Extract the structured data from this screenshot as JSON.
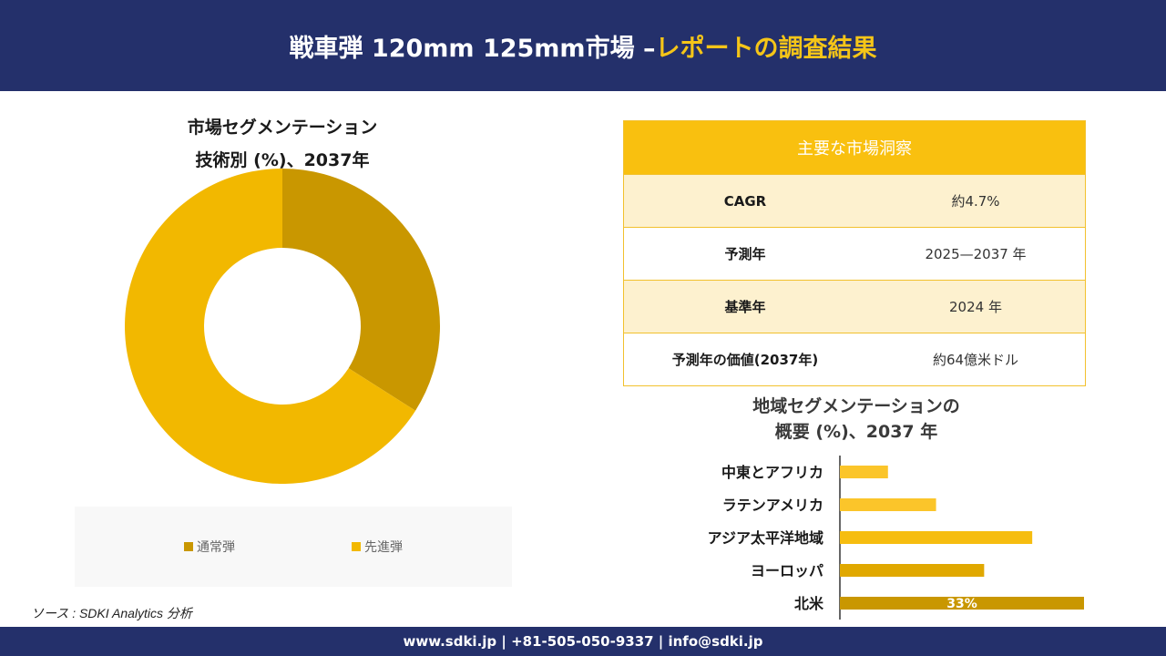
{
  "header": {
    "title_main": "戦車弾 120mm 125mm市場 –",
    "title_accent": "レポートの調査結果"
  },
  "colors": {
    "navy": "#24306b",
    "yellow_accent": "#f5c518",
    "donut_regular": "#c99700",
    "donut_advanced": "#f2b800"
  },
  "chart_data": [
    {
      "type": "pie",
      "title_line1": "市場セグメンテーション",
      "title_line2": "技術別 (%)、2037年",
      "categories": [
        "通常弾",
        "先進弾"
      ],
      "values": [
        34,
        66
      ],
      "colors": [
        "#c99700",
        "#f2b800"
      ],
      "donut": true,
      "legend_position": "bottom"
    },
    {
      "type": "bar",
      "orientation": "horizontal",
      "title_line1": "地域セグメンテーションの",
      "title_line2": "概要 (%)、2037 年",
      "categories": [
        "中東とアフリカ",
        "ラテンアメリカ",
        "アジア太平洋地域",
        "ヨーロッパ",
        "北米"
      ],
      "values": [
        6.5,
        13,
        26,
        19.5,
        33
      ],
      "colors": [
        "#fbc52a",
        "#fbc52a",
        "#f6bd10",
        "#e0a800",
        "#c99700"
      ],
      "data_labels": [
        "",
        "",
        "",
        "",
        "33%"
      ],
      "xlim": [
        0,
        33
      ]
    }
  ],
  "insights": {
    "heading": "主要な市場洞察",
    "rows": [
      {
        "label": "CAGR",
        "value": "約4.7%"
      },
      {
        "label": "予測年",
        "value": "2025—2037 年"
      },
      {
        "label": "基準年",
        "value": "2024 年"
      },
      {
        "label": "予測年の価値(2037年)",
        "value": "約64億米ドル"
      }
    ]
  },
  "source": "ソース : SDKI Analytics 分析",
  "footer": {
    "contact": "www.sdki.jp | +81-505-050-9337 | info@sdki.jp"
  }
}
